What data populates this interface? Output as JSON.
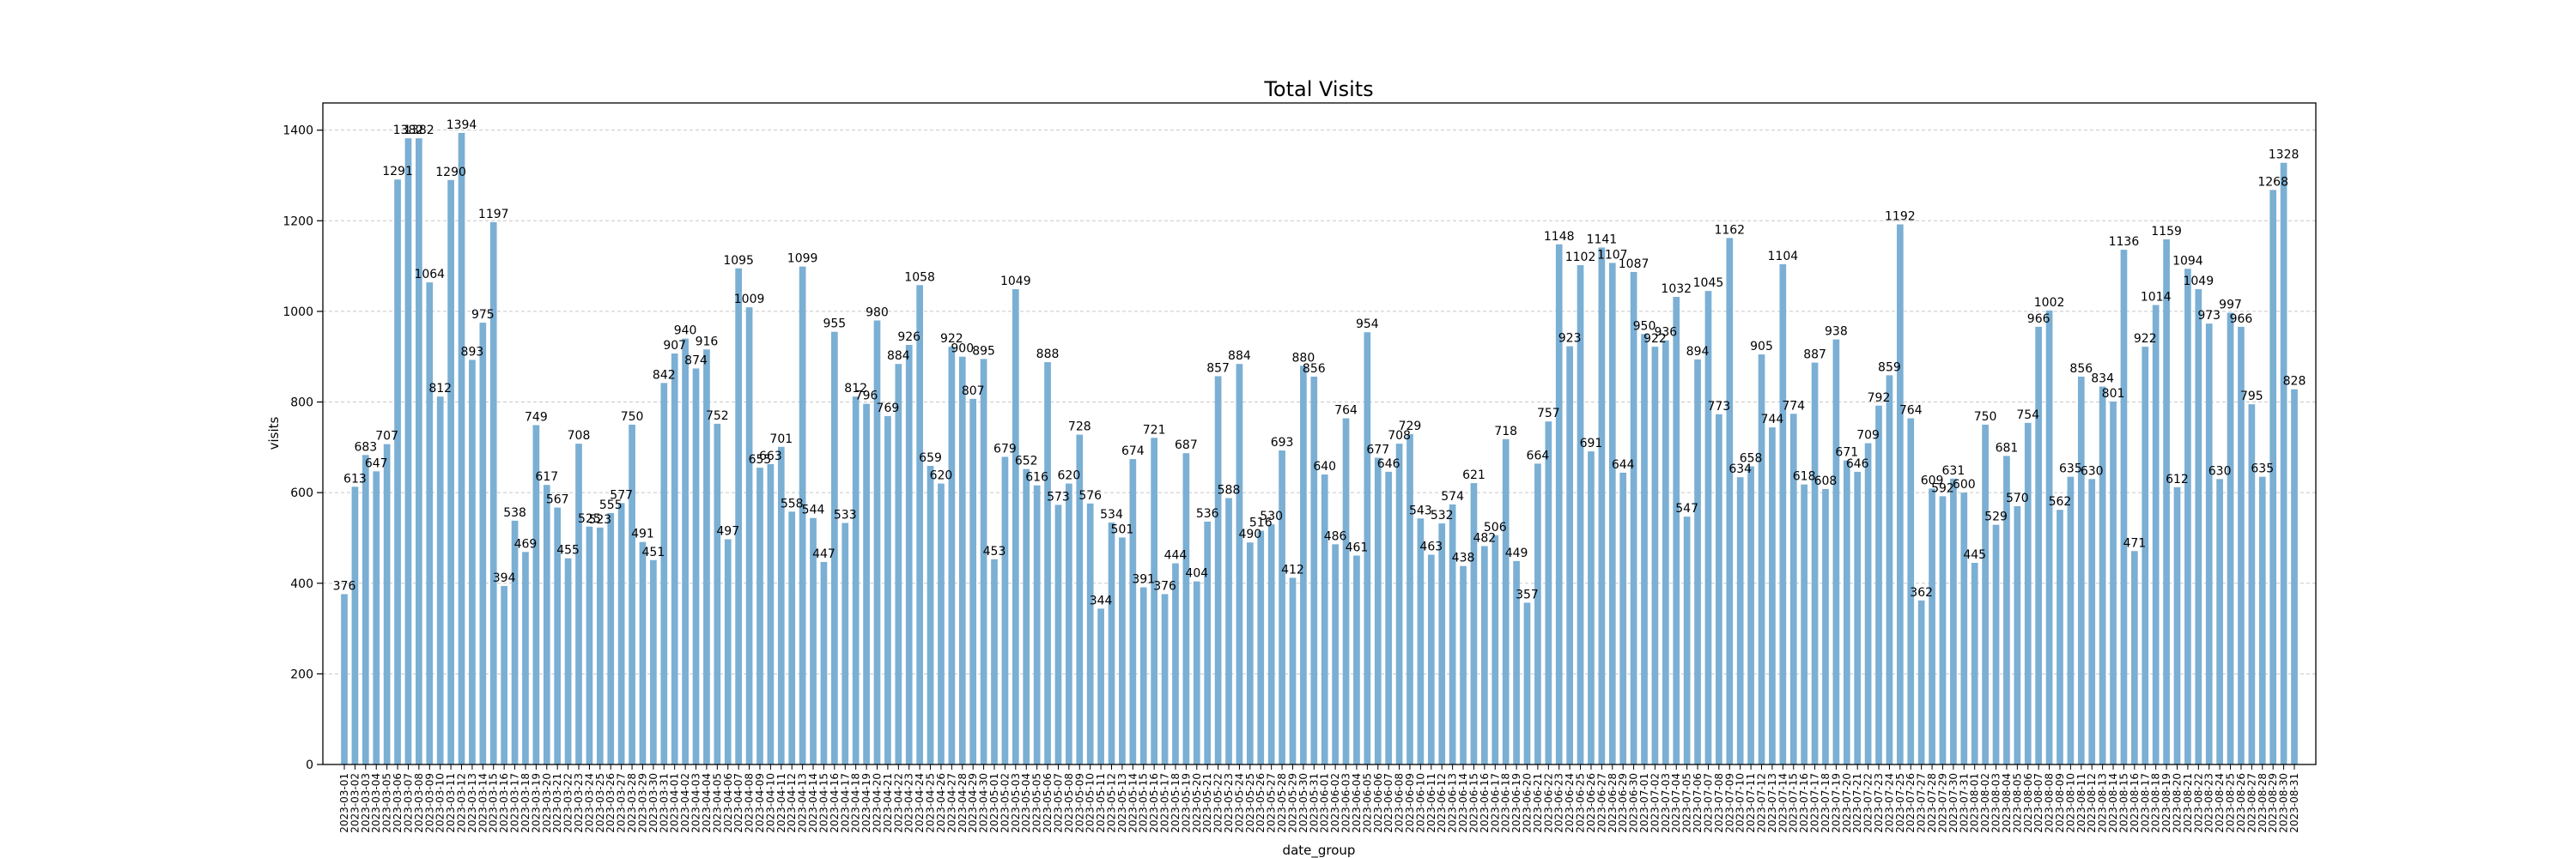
{
  "chart_data": {
    "type": "bar",
    "title": "Total Visits",
    "xlabel": "date_group",
    "ylabel": "visits",
    "ylim": [
      0,
      1460
    ],
    "yticks": [
      0,
      200,
      400,
      600,
      800,
      1000,
      1200,
      1400
    ],
    "grid": "horizontal dashed",
    "bar_color": "#7bafd4",
    "categories": [
      "2023-03-01",
      "2023-03-02",
      "2023-03-03",
      "2023-03-04",
      "2023-03-05",
      "2023-03-06",
      "2023-03-07",
      "2023-03-08",
      "2023-03-09",
      "2023-03-10",
      "2023-03-11",
      "2023-03-12",
      "2023-03-13",
      "2023-03-14",
      "2023-03-15",
      "2023-03-16",
      "2023-03-17",
      "2023-03-18",
      "2023-03-19",
      "2023-03-20",
      "2023-03-21",
      "2023-03-22",
      "2023-03-23",
      "2023-03-24",
      "2023-03-25",
      "2023-03-26",
      "2023-03-27",
      "2023-03-28",
      "2023-03-29",
      "2023-03-30",
      "2023-03-31",
      "2023-04-01",
      "2023-04-02",
      "2023-04-03",
      "2023-04-04",
      "2023-04-05",
      "2023-04-06",
      "2023-04-07",
      "2023-04-08",
      "2023-04-09",
      "2023-04-10",
      "2023-04-11",
      "2023-04-12",
      "2023-04-13",
      "2023-04-14",
      "2023-04-15",
      "2023-04-16",
      "2023-04-17",
      "2023-04-18",
      "2023-04-19",
      "2023-04-20",
      "2023-04-21",
      "2023-04-22",
      "2023-04-23",
      "2023-04-24",
      "2023-04-25",
      "2023-04-26",
      "2023-04-27",
      "2023-04-28",
      "2023-04-29",
      "2023-04-30",
      "2023-05-01",
      "2023-05-02",
      "2023-05-03",
      "2023-05-04",
      "2023-05-05",
      "2023-05-06",
      "2023-05-07",
      "2023-05-08",
      "2023-05-09",
      "2023-05-10",
      "2023-05-11",
      "2023-05-12",
      "2023-05-13",
      "2023-05-14",
      "2023-05-15",
      "2023-05-16",
      "2023-05-17",
      "2023-05-18",
      "2023-05-19",
      "2023-05-20",
      "2023-05-21",
      "2023-05-22",
      "2023-05-23",
      "2023-05-24",
      "2023-05-25",
      "2023-05-26",
      "2023-05-27",
      "2023-05-28",
      "2023-05-29",
      "2023-05-30",
      "2023-05-31",
      "2023-06-01",
      "2023-06-02",
      "2023-06-03",
      "2023-06-04",
      "2023-06-05",
      "2023-06-06",
      "2023-06-07",
      "2023-06-08",
      "2023-06-09",
      "2023-06-10",
      "2023-06-11",
      "2023-06-12",
      "2023-06-13",
      "2023-06-14",
      "2023-06-15",
      "2023-06-16",
      "2023-06-17",
      "2023-06-18",
      "2023-06-19",
      "2023-06-20",
      "2023-06-21",
      "2023-06-22",
      "2023-06-23",
      "2023-06-24",
      "2023-06-25",
      "2023-06-26",
      "2023-06-27",
      "2023-06-28",
      "2023-06-29",
      "2023-06-30",
      "2023-07-01",
      "2023-07-02",
      "2023-07-03",
      "2023-07-04",
      "2023-07-05",
      "2023-07-06",
      "2023-07-07",
      "2023-07-08",
      "2023-07-09",
      "2023-07-10",
      "2023-07-11",
      "2023-07-12",
      "2023-07-13",
      "2023-07-14",
      "2023-07-15",
      "2023-07-16",
      "2023-07-17",
      "2023-07-18",
      "2023-07-19",
      "2023-07-20",
      "2023-07-21",
      "2023-07-22",
      "2023-07-23",
      "2023-07-24",
      "2023-07-25",
      "2023-07-26",
      "2023-07-27",
      "2023-07-28",
      "2023-07-29",
      "2023-07-30",
      "2023-07-31",
      "2023-08-01",
      "2023-08-02",
      "2023-08-03",
      "2023-08-04",
      "2023-08-05",
      "2023-08-06",
      "2023-08-07",
      "2023-08-08",
      "2023-08-09",
      "2023-08-10",
      "2023-08-11",
      "2023-08-12",
      "2023-08-13",
      "2023-08-14",
      "2023-08-15",
      "2023-08-16",
      "2023-08-17",
      "2023-08-18",
      "2023-08-19",
      "2023-08-20",
      "2023-08-21",
      "2023-08-22",
      "2023-08-23",
      "2023-08-24",
      "2023-08-25",
      "2023-08-26",
      "2023-08-27",
      "2023-08-28",
      "2023-08-29",
      "2023-08-30",
      "2023-08-31"
    ],
    "values": [
      376,
      613,
      683,
      647,
      707,
      1291,
      1382,
      1382,
      1064,
      812,
      1290,
      1394,
      893,
      975,
      1197,
      394,
      538,
      469,
      749,
      617,
      567,
      455,
      708,
      525,
      523,
      555,
      577,
      750,
      491,
      451,
      842,
      907,
      940,
      874,
      916,
      752,
      497,
      1095,
      1009,
      655,
      663,
      701,
      558,
      1099,
      544,
      447,
      955,
      533,
      812,
      796,
      980,
      769,
      884,
      926,
      1058,
      659,
      620,
      922,
      900,
      807,
      895,
      453,
      679,
      1049,
      652,
      616,
      888,
      573,
      620,
      728,
      576,
      344,
      534,
      501,
      674,
      391,
      721,
      376,
      444,
      687,
      404,
      536,
      857,
      588,
      884,
      490,
      516,
      530,
      693,
      412,
      880,
      856,
      640,
      486,
      764,
      461,
      954,
      677,
      646,
      708,
      729,
      543,
      463,
      532,
      574,
      438,
      621,
      482,
      506,
      718,
      449,
      357,
      664,
      757,
      1148,
      923,
      1102,
      691,
      1141,
      1107,
      644,
      1087,
      950,
      922,
      936,
      1032,
      547,
      894,
      1045,
      773,
      1162,
      634,
      658,
      905,
      744,
      1104,
      774,
      618,
      887,
      608,
      938,
      671,
      646,
      709,
      792,
      859,
      1192,
      764,
      362,
      609,
      592,
      631,
      600,
      445,
      750,
      529,
      681,
      570,
      754,
      966,
      1002,
      562,
      635,
      856,
      630,
      834,
      801,
      1136,
      471,
      922,
      1014,
      1159,
      612,
      1094,
      1049,
      973,
      630,
      997,
      966,
      795,
      635,
      1268,
      1328,
      828
    ]
  }
}
